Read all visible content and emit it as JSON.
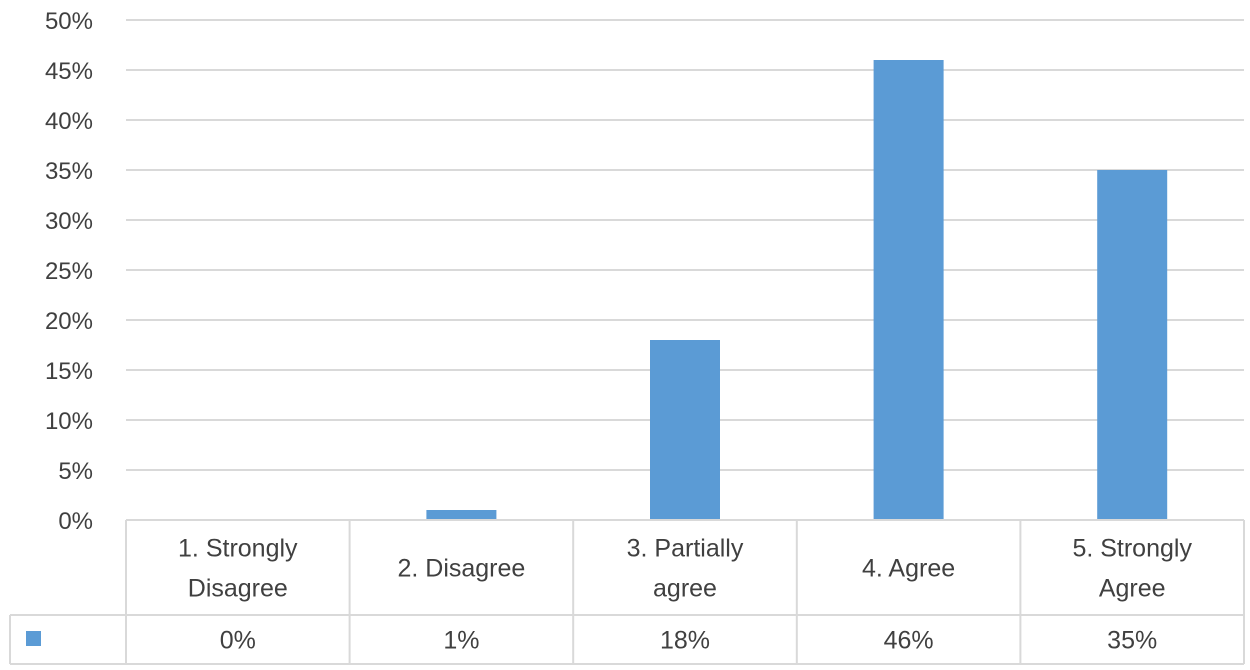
{
  "chart_data": {
    "type": "bar",
    "categories": [
      [
        "1. Strongly",
        "Disagree"
      ],
      [
        "2. Disagree"
      ],
      [
        "3. Partially",
        "agree"
      ],
      [
        "4. Agree"
      ],
      [
        "5. Strongly",
        "Agree"
      ]
    ],
    "values": [
      0,
      1,
      18,
      46,
      35
    ],
    "value_labels": [
      "0%",
      "1%",
      "18%",
      "46%",
      "35%"
    ],
    "yticks": [
      "0%",
      "5%",
      "10%",
      "15%",
      "20%",
      "25%",
      "30%",
      "35%",
      "40%",
      "45%",
      "50%"
    ],
    "ylim": [
      0,
      50
    ],
    "grid": true,
    "legend": "data-table",
    "bar_color": "#5b9bd5",
    "grid_color": "#d9d9d9"
  }
}
